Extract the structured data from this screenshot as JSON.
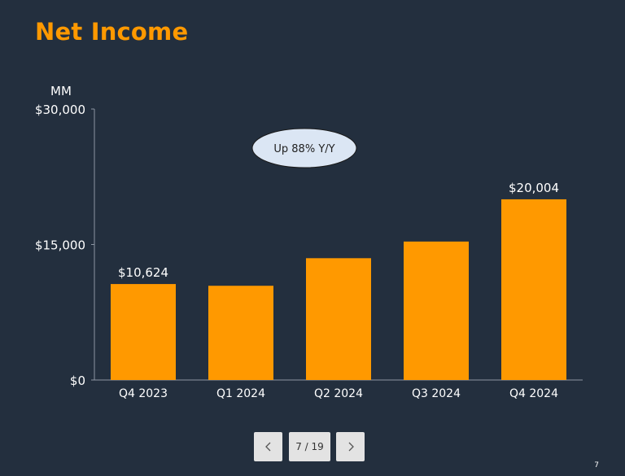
{
  "slide": {
    "title": "Net Income",
    "page_number": "7"
  },
  "navigation": {
    "prev_icon": "chevron-left-icon",
    "next_icon": "chevron-right-icon",
    "counter": "7 / 19"
  },
  "colors": {
    "background": "#232f3e",
    "title": "#ff9900",
    "bar": "#ff9900",
    "callout_fill": "#dbe6f4"
  },
  "chart_data": {
    "type": "bar",
    "title": "Net Income",
    "unit_label": "MM",
    "categories": [
      "Q4 2023",
      "Q1 2024",
      "Q2 2024",
      "Q3 2024",
      "Q4 2024"
    ],
    "values": [
      10624,
      10431,
      13485,
      15328,
      20004
    ],
    "data_labels": [
      "$10,624",
      "",
      "",
      "",
      "$20,004"
    ],
    "ylim": [
      0,
      30000
    ],
    "yticks": [
      0,
      15000,
      30000
    ],
    "ytick_labels": [
      "$0",
      "$15,000",
      "$30,000"
    ],
    "grid": false,
    "callout": "Up 88% Y/Y"
  }
}
